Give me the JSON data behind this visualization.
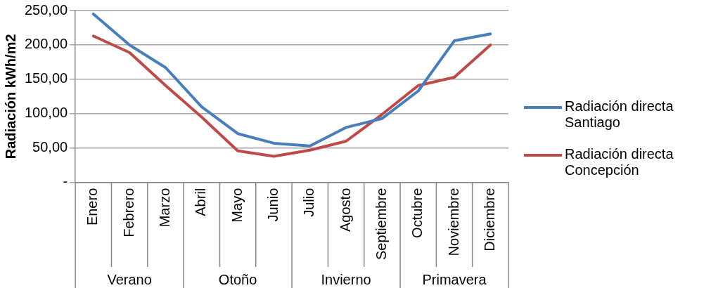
{
  "chart_data": {
    "type": "line",
    "ylabel": "Radiación kWh/m2",
    "categories": [
      "Enero",
      "Febrero",
      "Marzo",
      "Abril",
      "Mayo",
      "Junio",
      "Julio",
      "Agosto",
      "Septiembre",
      "Octubre",
      "Noviembre",
      "Diciembre"
    ],
    "series": [
      {
        "name": "Radiación directa Santiago",
        "color": "#4a7ebb",
        "values": [
          245,
          200,
          167,
          110,
          71,
          57,
          53,
          80,
          93,
          133,
          206,
          216
        ]
      },
      {
        "name": "Radiación directa Concepción",
        "color": "#be4b48",
        "values": [
          213,
          189,
          141,
          95,
          46,
          38,
          47,
          60,
          99,
          141,
          153,
          200
        ]
      }
    ],
    "ylim": [
      0,
      250
    ],
    "yticks": [
      {
        "value": 0,
        "label": "-"
      },
      {
        "value": 50,
        "label": "50,00"
      },
      {
        "value": 100,
        "label": "100,00"
      },
      {
        "value": 150,
        "label": "150,00"
      },
      {
        "value": 200,
        "label": "200,00"
      },
      {
        "value": 250,
        "label": "250,00"
      }
    ],
    "grid": "y",
    "legend": "right",
    "marker": "none",
    "annotations": [
      "Verano",
      "Otoño",
      "Invierno",
      "Primavera"
    ]
  }
}
